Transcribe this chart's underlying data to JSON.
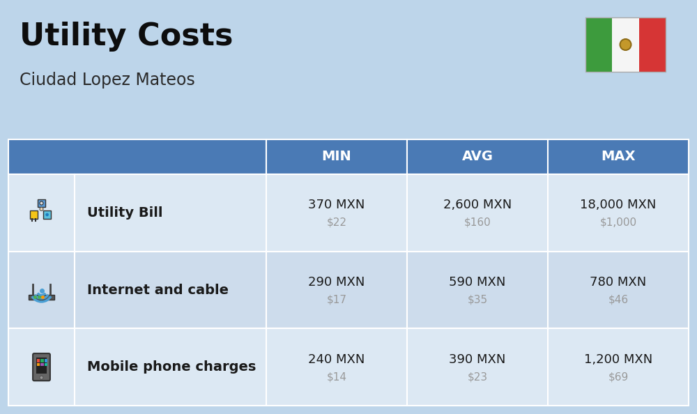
{
  "title": "Utility Costs",
  "subtitle": "Ciudad Lopez Mateos",
  "background_color": "#bdd5ea",
  "header_color": "#4a7ab5",
  "header_text_color": "#ffffff",
  "row_color_1": "#dce8f3",
  "row_color_2": "#cddcec",
  "cell_text_color": "#1a1a1a",
  "sub_text_color": "#999999",
  "col_headers": [
    "MIN",
    "AVG",
    "MAX"
  ],
  "rows": [
    {
      "label": "Utility Bill",
      "icon": "utility",
      "min_mxn": "370 MXN",
      "min_usd": "$22",
      "avg_mxn": "2,600 MXN",
      "avg_usd": "$160",
      "max_mxn": "18,000 MXN",
      "max_usd": "$1,000"
    },
    {
      "label": "Internet and cable",
      "icon": "internet",
      "min_mxn": "290 MXN",
      "min_usd": "$17",
      "avg_mxn": "590 MXN",
      "avg_usd": "$35",
      "max_mxn": "780 MXN",
      "max_usd": "$46"
    },
    {
      "label": "Mobile phone charges",
      "icon": "mobile",
      "min_mxn": "240 MXN",
      "min_usd": "$14",
      "avg_mxn": "390 MXN",
      "avg_usd": "$23",
      "max_mxn": "1,200 MXN",
      "max_usd": "$69"
    }
  ],
  "flag_green": "#4caf50",
  "flag_white": "#ffffff",
  "flag_red": "#f44336"
}
